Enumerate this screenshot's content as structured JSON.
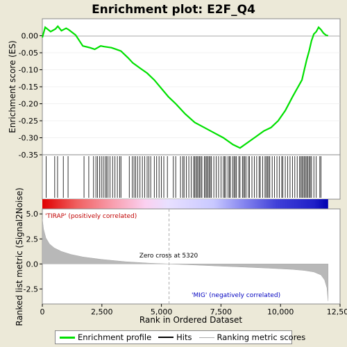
{
  "chart_data": {
    "type": "line",
    "title": "Enrichment plot: E2F_Q4",
    "top_panel": {
      "ylabel": "Enrichment score (ES)",
      "ylim": [
        -0.35,
        0.05
      ],
      "yticks": [
        "0.00",
        "-0.05",
        "-0.10",
        "-0.15",
        "-0.20",
        "-0.25",
        "-0.30",
        "-0.35"
      ],
      "ytick_values": [
        0.0,
        -0.05,
        -0.1,
        -0.15,
        -0.2,
        -0.25,
        -0.3,
        -0.35
      ],
      "series": [
        {
          "name": "Enrichment profile",
          "color": "#00e000",
          "x": [
            0,
            120,
            350,
            550,
            650,
            800,
            1000,
            1100,
            1400,
            1700,
            2000,
            2200,
            2450,
            2600,
            2900,
            3100,
            3300,
            3600,
            3800,
            4100,
            4400,
            4700,
            5000,
            5300,
            5600,
            6000,
            6400,
            6800,
            7200,
            7600,
            8000,
            8300,
            8600,
            9000,
            9300,
            9600,
            9900,
            10200,
            10500,
            10700,
            10900,
            11000,
            11100,
            11200,
            11300,
            11400,
            11500,
            11600,
            11700,
            11800,
            11900,
            12000
          ],
          "y": [
            -0.005,
            0.025,
            0.012,
            0.02,
            0.028,
            0.015,
            0.022,
            0.018,
            0.002,
            -0.03,
            -0.035,
            -0.04,
            -0.03,
            -0.032,
            -0.035,
            -0.04,
            -0.045,
            -0.065,
            -0.08,
            -0.095,
            -0.11,
            -0.13,
            -0.155,
            -0.18,
            -0.2,
            -0.23,
            -0.255,
            -0.27,
            -0.285,
            -0.3,
            -0.32,
            -0.33,
            -0.315,
            -0.295,
            -0.28,
            -0.27,
            -0.25,
            -0.22,
            -0.18,
            -0.155,
            -0.13,
            -0.1,
            -0.07,
            -0.045,
            -0.015,
            0.005,
            0.012,
            0.025,
            0.018,
            0.008,
            0.002,
            0.0
          ]
        }
      ]
    },
    "hits_panel": {
      "legend_name": "Hits",
      "hit_positions": [
        160,
        520,
        640,
        880,
        1080,
        1750,
        1950,
        2150,
        2250,
        2320,
        2400,
        2480,
        2560,
        2640,
        2700,
        2760,
        2840,
        2950,
        3050,
        3150,
        3250,
        3300,
        3650,
        3780,
        3850,
        3920,
        4000,
        4100,
        4200,
        4300,
        4400,
        4470,
        4550,
        4700,
        4800,
        4900,
        5000,
        5100,
        5250,
        5500,
        5600,
        5800,
        5900,
        5950,
        6050,
        6150,
        6250,
        6350,
        6400,
        6450,
        6500,
        6550,
        6600,
        6650,
        6700,
        6800,
        6850,
        6900,
        6950,
        7000,
        7050,
        7100,
        7200,
        7300,
        7400,
        7500,
        7600,
        7650,
        7700,
        7800,
        7850,
        7900,
        8000,
        8050,
        8100,
        8150,
        8250,
        8300,
        8400,
        8450,
        8500,
        8550,
        8650,
        8700,
        8800,
        8900,
        9000,
        9100,
        9150,
        9250,
        9350,
        9400,
        9450,
        9500,
        9550,
        9650,
        9750,
        9850,
        9950,
        10050,
        10100,
        10200,
        10300,
        10400,
        10500,
        10600,
        10700,
        10800,
        10850,
        10900,
        10950,
        11000,
        11050,
        11100,
        11150,
        11200,
        11250,
        11300,
        11400,
        11500,
        11650,
        11700
      ]
    },
    "metric_panel": {
      "ylabel": "Ranked list metric (Signal2Noise)",
      "ylim": [
        -4.0,
        5.5
      ],
      "yticks": [
        "5.0",
        "2.5",
        "0.0",
        "-2.5"
      ],
      "ytick_values": [
        5.0,
        2.5,
        0.0,
        -2.5
      ],
      "series_name": "Ranking metric scores",
      "x": [
        0,
        50,
        150,
        300,
        500,
        800,
        1200,
        1700,
        2500,
        3500,
        4500,
        5320,
        6500,
        7500,
        8500,
        9500,
        10500,
        11000,
        11400,
        11700,
        11850,
        11950,
        12000
      ],
      "y": [
        4.5,
        3.5,
        2.6,
        2.0,
        1.6,
        1.25,
        0.95,
        0.7,
        0.45,
        0.22,
        0.08,
        0.0,
        -0.12,
        -0.22,
        -0.32,
        -0.42,
        -0.55,
        -0.65,
        -0.8,
        -1.1,
        -1.6,
        -2.4,
        -3.7
      ],
      "zero_cross_label": "Zero cross at 5320",
      "zero_cross": 5320,
      "pos_label": "'TIRAP' (positively correlated)",
      "neg_label": "'MIG' (negatively correlated)"
    },
    "xlabel": "Rank in Ordered Dataset",
    "xlim": [
      0,
      12500
    ],
    "xticks": [
      "0",
      "2,500",
      "5,000",
      "7,500",
      "10,000",
      "12,500"
    ],
    "xtick_values": [
      0,
      2500,
      5000,
      7500,
      10000,
      12500
    ],
    "n_genes": 12000
  },
  "legend": {
    "enrichment": "Enrichment profile",
    "hits": "Hits",
    "ranking": "Ranking metric scores"
  },
  "colors": {
    "profile": "#00e000",
    "positive": "#e00000",
    "negative": "#0000d0",
    "metric_fill": "#b8b8b8",
    "background": "#ece9d8"
  }
}
